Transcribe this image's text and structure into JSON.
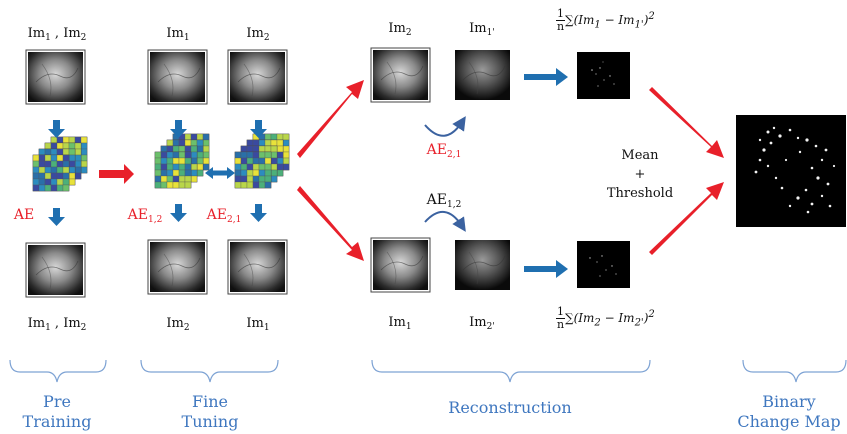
{
  "texts": {
    "pre_top": [
      "Im",
      "1",
      " , Im",
      "2"
    ],
    "pre_bottom": [
      "Im",
      "1",
      " , Im",
      "2"
    ],
    "ft_top_left": [
      "Im",
      "1"
    ],
    "ft_top_right": [
      "Im",
      "2"
    ],
    "ft_bottom_left": [
      "Im",
      "2"
    ],
    "ft_bottom_right": [
      "Im",
      "1"
    ],
    "rec_top_left": [
      "Im",
      "2"
    ],
    "rec_top_right": [
      "Im",
      "1'"
    ],
    "rec_bottom_left": [
      "Im",
      "1"
    ],
    "rec_bottom_right": [
      "Im",
      "2'"
    ]
  },
  "ae_labels": {
    "ae": "AE",
    "ae12_base": "AE",
    "ae12_sub": "1,2",
    "ae21_base": "AE",
    "ae21_sub": "2,1",
    "rec_ae21_base": "AE",
    "rec_ae21_sub": "2,1",
    "rec_ae12_base": "AE",
    "rec_ae12_sub": "1,2"
  },
  "formulas": {
    "top": {
      "num": "1",
      "den": "n",
      "body": "∑(Im",
      "s1": "1",
      "mid": " − Im",
      "s2": "1'",
      "tail": ")",
      "pow": "2"
    },
    "bottom": {
      "num": "1",
      "den": "n",
      "body": "∑(Im",
      "s1": "2",
      "mid": " − Im",
      "s2": "2'",
      "tail": ")",
      "pow": "2"
    }
  },
  "center": {
    "line1": "Mean",
    "line2": "+",
    "line3": "Threshold"
  },
  "stages": {
    "pre": {
      "line1": "Pre",
      "line2": "Training"
    },
    "fine": {
      "line1": "Fine",
      "line2": "Tuning"
    },
    "recon": {
      "line1": "Reconstruction"
    },
    "binary": {
      "line1": "Binary",
      "line2": "Change Map"
    }
  },
  "colors": {
    "stage_label": "#3f77bf",
    "blue_arrow": "#1f6fb0",
    "red_arrow": "#e8202a",
    "ae_label": "#e8202a",
    "brace": "#7ea3d4"
  },
  "icons": [
    "grayscale-image-icon",
    "feature-map-stack-icon",
    "difference-map-icon",
    "binary-change-map-icon"
  ]
}
